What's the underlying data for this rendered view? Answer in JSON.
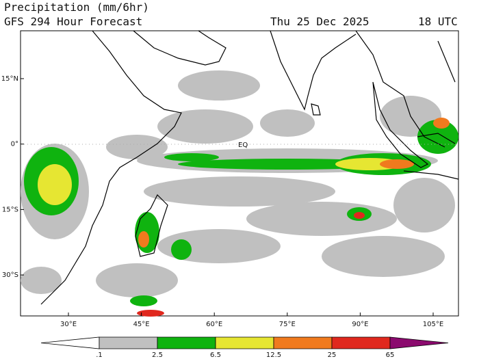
{
  "header": {
    "title": "Precipitation (mm/6hr)",
    "subtitle": "GFS 294 Hour Forecast",
    "date": "Thu 25 Dec 2025",
    "time": "18 UTC"
  },
  "map": {
    "lat_labels": [
      "15°N",
      "0°",
      "15°S",
      "30°S"
    ],
    "lon_labels": [
      "30°E",
      "45°E",
      "60°E",
      "75°E",
      "90°E",
      "105°E"
    ],
    "equator_label": "EQ"
  },
  "colorbar": {
    "labels": [
      ".1",
      "2.5",
      "6.5",
      "12.5",
      "25",
      "65"
    ],
    "colors": [
      "#ffffff",
      "#c0c0c0",
      "#0fb30f",
      "#e6e632",
      "#f07a1e",
      "#e0281e",
      "#8b0a6e"
    ]
  }
}
